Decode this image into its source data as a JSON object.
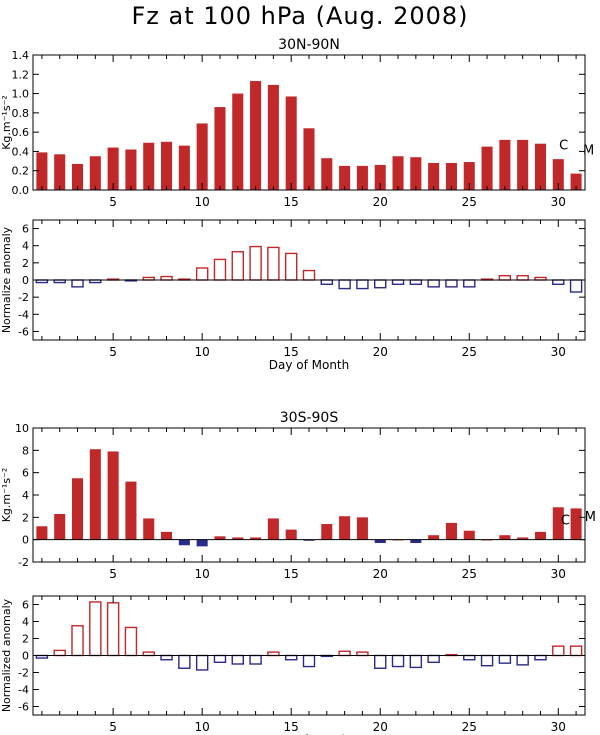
{
  "title": "Fz at 100 hPa (Aug. 2008)",
  "colors": {
    "positive": "#c0282a",
    "negative": "#2a2a8a",
    "axis": "#000000"
  },
  "chart_data": [
    {
      "id": "nh-flux",
      "type": "bar",
      "title": "30N-90N",
      "xlabel": "",
      "ylabel": "Kg.m⁻¹s⁻²",
      "xlim": [
        0.5,
        31.5
      ],
      "ylim": [
        0,
        1.4
      ],
      "xticks": [
        5,
        10,
        15,
        20,
        25,
        30
      ],
      "yticks": [
        0.0,
        0.2,
        0.4,
        0.6,
        0.8,
        1.0,
        1.2,
        1.4
      ],
      "ytick_labels": [
        "0.0",
        "0.2",
        "0.4",
        "0.6",
        "0.8",
        "1.0",
        "1.2",
        "1.4"
      ],
      "fill": "solid",
      "annotations": [
        {
          "text": "C",
          "x": 30.3,
          "y": 0.47
        },
        {
          "text": "M",
          "x": 31.7,
          "y": 0.42
        }
      ],
      "x": [
        1,
        2,
        3,
        4,
        5,
        6,
        7,
        8,
        9,
        10,
        11,
        12,
        13,
        14,
        15,
        16,
        17,
        18,
        19,
        20,
        21,
        22,
        23,
        24,
        25,
        26,
        27,
        28,
        29,
        30,
        31
      ],
      "values": [
        0.39,
        0.37,
        0.27,
        0.35,
        0.44,
        0.42,
        0.49,
        0.5,
        0.46,
        0.69,
        0.86,
        1.0,
        1.13,
        1.09,
        0.97,
        0.64,
        0.33,
        0.25,
        0.25,
        0.26,
        0.35,
        0.34,
        0.28,
        0.28,
        0.29,
        0.45,
        0.52,
        0.52,
        0.48,
        0.32,
        0.17
      ]
    },
    {
      "id": "nh-anomaly",
      "type": "bar",
      "title": "",
      "xlabel": "Day of Month",
      "ylabel": "Normalize anomaly",
      "xlim": [
        0.5,
        31.5
      ],
      "ylim": [
        -7,
        7
      ],
      "xticks": [
        5,
        10,
        15,
        20,
        25,
        30
      ],
      "yticks": [
        -6,
        -4,
        -2,
        0,
        2,
        4,
        6
      ],
      "ytick_labels": [
        "-6",
        "-4",
        "-2",
        "0",
        "2",
        "4",
        "6"
      ],
      "fill": "outline",
      "zero_line": true,
      "x": [
        1,
        2,
        3,
        4,
        5,
        6,
        7,
        8,
        9,
        10,
        11,
        12,
        13,
        14,
        15,
        16,
        17,
        18,
        19,
        20,
        21,
        22,
        23,
        24,
        25,
        26,
        27,
        28,
        29,
        30,
        31
      ],
      "values": [
        -0.3,
        -0.3,
        -0.8,
        -0.3,
        0.1,
        -0.1,
        0.3,
        0.4,
        0.1,
        1.4,
        2.4,
        3.3,
        3.9,
        3.8,
        3.1,
        1.1,
        -0.5,
        -1.0,
        -1.0,
        -0.9,
        -0.5,
        -0.5,
        -0.8,
        -0.8,
        -0.8,
        0.1,
        0.5,
        0.5,
        0.3,
        -0.5,
        -1.4
      ]
    },
    {
      "id": "sh-flux",
      "type": "bar",
      "title": "30S-90S",
      "xlabel": "",
      "ylabel": "Kg.m⁻¹s⁻²",
      "xlim": [
        0.5,
        31.5
      ],
      "ylim": [
        -2,
        10
      ],
      "xticks": [
        5,
        10,
        15,
        20,
        25,
        30
      ],
      "yticks": [
        -2,
        0,
        2,
        4,
        6,
        8,
        10
      ],
      "ytick_labels": [
        "-2",
        "0",
        "2",
        "4",
        "6",
        "8",
        "10"
      ],
      "fill": "solid",
      "zero_line": true,
      "annotations": [
        {
          "text": "C",
          "x": 30.4,
          "y": 1.8
        },
        {
          "text": "M",
          "x": 31.8,
          "y": 2.1
        }
      ],
      "x": [
        1,
        2,
        3,
        4,
        5,
        6,
        7,
        8,
        9,
        10,
        11,
        12,
        13,
        14,
        15,
        16,
        17,
        18,
        19,
        20,
        21,
        22,
        23,
        24,
        25,
        26,
        27,
        28,
        29,
        30,
        31
      ],
      "values": [
        1.2,
        2.3,
        5.5,
        8.1,
        7.9,
        5.2,
        1.9,
        0.7,
        -0.5,
        -0.6,
        0.3,
        0.2,
        0.2,
        1.9,
        0.9,
        -0.1,
        1.4,
        2.1,
        2.0,
        -0.3,
        0.0,
        -0.3,
        0.4,
        1.5,
        0.8,
        0.0,
        0.4,
        0.2,
        0.7,
        2.9,
        2.8
      ]
    },
    {
      "id": "sh-anomaly",
      "type": "bar",
      "title": "",
      "xlabel": "Day of Month",
      "ylabel": "Normalized anomaly",
      "xlim": [
        0.5,
        31.5
      ],
      "ylim": [
        -7,
        7
      ],
      "xticks": [
        5,
        10,
        15,
        20,
        25,
        30
      ],
      "yticks": [
        -6,
        -4,
        -2,
        0,
        2,
        4,
        6
      ],
      "ytick_labels": [
        "-6",
        "-4",
        "-2",
        "0",
        "2",
        "4",
        "6"
      ],
      "fill": "outline",
      "zero_line": true,
      "x": [
        1,
        2,
        3,
        4,
        5,
        6,
        7,
        8,
        9,
        10,
        11,
        12,
        13,
        14,
        15,
        16,
        17,
        18,
        19,
        20,
        21,
        22,
        23,
        24,
        25,
        26,
        27,
        28,
        29,
        30,
        31
      ],
      "values": [
        -0.3,
        0.6,
        3.5,
        6.3,
        6.2,
        3.3,
        0.4,
        -0.5,
        -1.5,
        -1.7,
        -0.8,
        -1.0,
        -1.0,
        0.4,
        -0.5,
        -1.3,
        -0.1,
        0.5,
        0.4,
        -1.5,
        -1.3,
        -1.4,
        -0.8,
        0.1,
        -0.5,
        -1.2,
        -0.9,
        -1.1,
        -0.5,
        1.1,
        1.1
      ]
    }
  ]
}
